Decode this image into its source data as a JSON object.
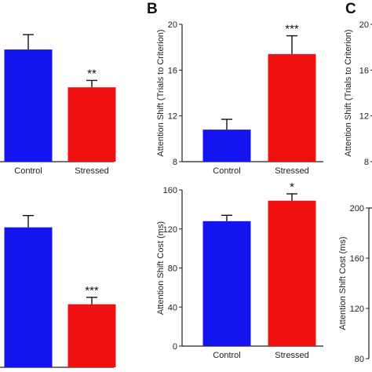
{
  "panel_labels": [
    "B",
    "C"
  ],
  "colors": {
    "control": "#1414f0",
    "stressed": "#f01010",
    "axis": "#222222"
  },
  "chart_data": [
    {
      "id": "top-left",
      "type": "bar",
      "categories": [
        "Control",
        "Stressed"
      ],
      "values": [
        17.8,
        14.5
      ],
      "errors": [
        1.3,
        0.6
      ],
      "significance": [
        "",
        "**"
      ],
      "ylim": [
        8,
        20
      ],
      "yticks": [],
      "ylabel": "",
      "title": ""
    },
    {
      "id": "top-middle",
      "type": "bar",
      "categories": [
        "Control",
        "Stressed"
      ],
      "values": [
        10.8,
        17.4
      ],
      "errors": [
        0.9,
        1.6
      ],
      "significance": [
        "",
        "***"
      ],
      "ylim": [
        8,
        20
      ],
      "yticks": [
        "8",
        "12",
        "16",
        "20"
      ],
      "ylabel": "Attention Shift (Trials to Criterion)",
      "title": ""
    },
    {
      "id": "top-right",
      "type": "bar",
      "categories": [],
      "values": [],
      "errors": [],
      "significance": [],
      "ylim": [
        8,
        20
      ],
      "yticks": [
        "8",
        "12",
        "16",
        "20"
      ],
      "ylabel": "Attention Shift (Trials to Criterion)",
      "title": ""
    },
    {
      "id": "bottom-left",
      "type": "bar",
      "categories": [
        "Control",
        "Stressed"
      ],
      "values": [
        182,
        104
      ],
      "errors": [
        12,
        7
      ],
      "significance": [
        "",
        "***"
      ],
      "ylim": [
        40,
        220
      ],
      "yticks": [],
      "ylabel": "",
      "title": ""
    },
    {
      "id": "bottom-middle",
      "type": "bar",
      "categories": [
        "Control",
        "Stressed"
      ],
      "values": [
        128,
        149
      ],
      "errors": [
        6,
        7
      ],
      "significance": [
        "",
        "*"
      ],
      "ylim": [
        0,
        160
      ],
      "yticks": [
        "0",
        "40",
        "80",
        "120",
        "160"
      ],
      "ylabel": "Attention Shift Cost (ms)",
      "title": ""
    },
    {
      "id": "bottom-right",
      "type": "bar",
      "categories": [],
      "values": [],
      "errors": [],
      "significance": [],
      "ylim": [
        80,
        200
      ],
      "yticks": [
        "80",
        "120",
        "160",
        "200"
      ],
      "ylabel": "Attention Shift Cost (ms)",
      "title": ""
    }
  ]
}
